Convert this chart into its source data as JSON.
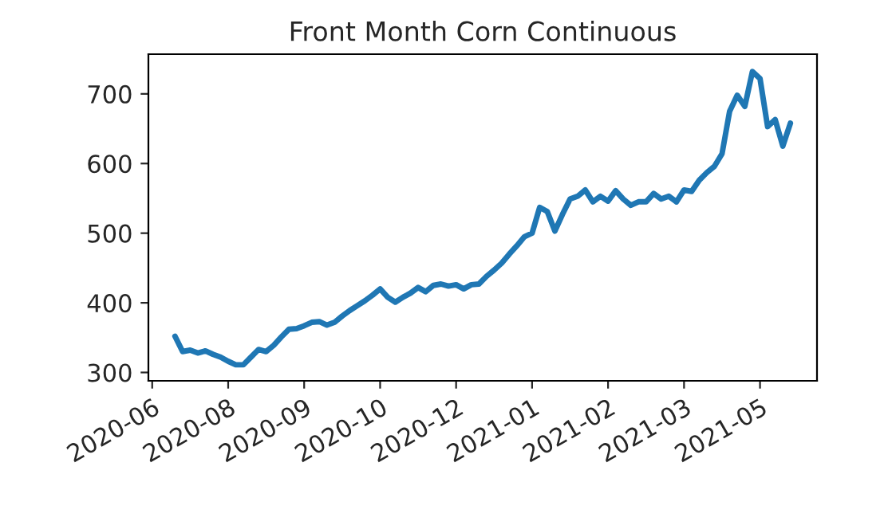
{
  "chart_data": {
    "type": "line",
    "title": "Front Month Corn Continuous",
    "categories": [
      "2020-06",
      null,
      null,
      null,
      null,
      null,
      null,
      null,
      null,
      null,
      "2020-08",
      null,
      null,
      null,
      null,
      null,
      null,
      null,
      null,
      null,
      "2020-09",
      null,
      null,
      null,
      null,
      null,
      null,
      null,
      null,
      null,
      "2020-10",
      null,
      null,
      null,
      null,
      null,
      null,
      null,
      null,
      null,
      "2020-12",
      null,
      null,
      null,
      null,
      null,
      null,
      null,
      null,
      null,
      "2021-01",
      null,
      null,
      null,
      null,
      null,
      null,
      null,
      null,
      null,
      "2021-02",
      null,
      null,
      null,
      null,
      null,
      null,
      null,
      null,
      null,
      "2021-03",
      null,
      null,
      null,
      null,
      null,
      null,
      null,
      null,
      null,
      "2021-05",
      null,
      null,
      null,
      null
    ],
    "series": [
      {
        "color": "#1f77b4",
        "values": [
          null,
          null,
          null,
          352,
          330,
          332,
          328,
          331,
          326,
          322,
          316,
          311,
          311,
          322,
          333,
          330,
          339,
          351,
          362,
          363,
          367,
          372,
          373,
          368,
          372,
          381,
          389,
          396,
          403,
          411,
          420,
          408,
          401,
          408,
          414,
          422,
          416,
          425,
          427,
          424,
          426,
          420,
          426,
          427,
          438,
          447,
          457,
          470,
          482,
          495,
          500,
          537,
          531,
          503,
          527,
          549,
          553,
          562,
          545,
          553,
          546,
          561,
          549,
          540,
          545,
          545,
          557,
          549,
          553,
          545,
          562,
          560,
          576,
          587,
          596,
          614,
          675,
          698,
          682,
          732,
          722,
          653,
          663,
          625,
          658
        ]
      }
    ],
    "ylim": [
      288,
      757
    ],
    "yticks": [
      300,
      400,
      500,
      600,
      700
    ],
    "grid": false,
    "legend": false,
    "marker": "none",
    "line_style": "solid"
  }
}
